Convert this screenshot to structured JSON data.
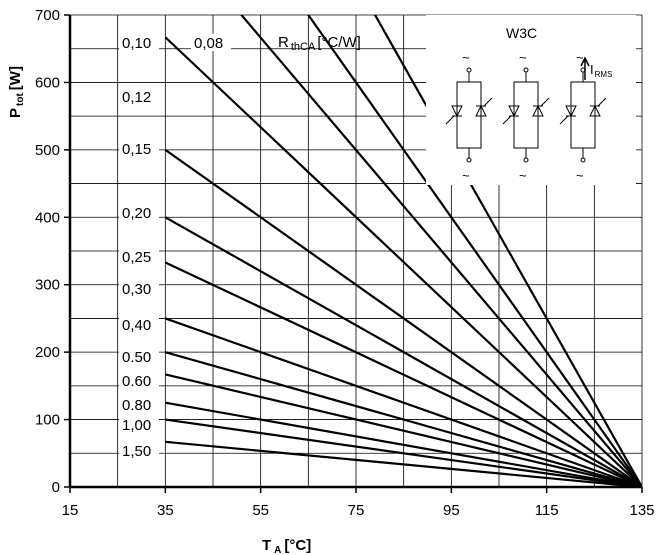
{
  "chart_data": {
    "type": "line",
    "xlabel_main": "T",
    "xlabel_sub": "A",
    "xlabel_unit": "[°C]",
    "ylabel_main": "P",
    "ylabel_sub": "tot",
    "ylabel_unit": "[W]",
    "xlim": [
      15,
      135
    ],
    "ylim": [
      0,
      700
    ],
    "x_ticks": [
      15,
      35,
      55,
      75,
      95,
      115,
      135
    ],
    "y_ticks": [
      0,
      100,
      200,
      300,
      400,
      500,
      600,
      700
    ],
    "x_grid": [
      15,
      25,
      35,
      45,
      55,
      65,
      75,
      85,
      95,
      105,
      115,
      125,
      135
    ],
    "y_grid": [
      0,
      50,
      100,
      150,
      200,
      250,
      300,
      350,
      400,
      450,
      500,
      550,
      600,
      650,
      700
    ],
    "grid": true,
    "legend_title_main": "R",
    "legend_title_sub": "thCA",
    "legend_title_unit": "[°C/W]",
    "inset_title": "W3C",
    "inset_label_main": "I",
    "inset_label_sub": "RMS",
    "inset_tilde": "~",
    "series": [
      {
        "name": "0,08",
        "x": [
          35,
          135
        ],
        "y": [
          1250,
          0
        ]
      },
      {
        "name": "0,10",
        "x": [
          35,
          135
        ],
        "y": [
          1000,
          0
        ]
      },
      {
        "name": "0,12",
        "x": [
          35,
          135
        ],
        "y": [
          833,
          0
        ]
      },
      {
        "name": "0,15",
        "x": [
          35,
          135
        ],
        "y": [
          667,
          0
        ]
      },
      {
        "name": "0,20",
        "x": [
          35,
          135
        ],
        "y": [
          500,
          0
        ]
      },
      {
        "name": "0,25",
        "x": [
          35,
          135
        ],
        "y": [
          400,
          0
        ]
      },
      {
        "name": "0,30",
        "x": [
          35,
          135
        ],
        "y": [
          333,
          0
        ]
      },
      {
        "name": "0,40",
        "x": [
          35,
          135
        ],
        "y": [
          250,
          0
        ]
      },
      {
        "name": "0.50",
        "x": [
          35,
          135
        ],
        "y": [
          200,
          0
        ]
      },
      {
        "name": "0.60",
        "x": [
          35,
          135
        ],
        "y": [
          167,
          0
        ]
      },
      {
        "name": "0.80",
        "x": [
          35,
          135
        ],
        "y": [
          125,
          0
        ]
      },
      {
        "name": "1,00",
        "x": [
          35,
          135
        ],
        "y": [
          100,
          0
        ]
      },
      {
        "name": "1,50",
        "x": [
          35,
          135
        ],
        "y": [
          67,
          0
        ]
      }
    ]
  }
}
